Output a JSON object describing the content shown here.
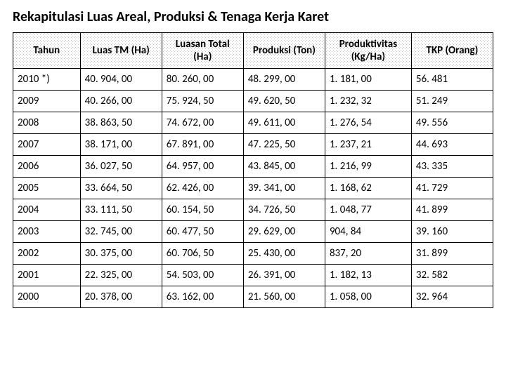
{
  "title": "Rekapitulasi Luas Areal, Produksi & Tenaga Kerja Karet",
  "table": {
    "columns": [
      "Tahun",
      "Luas TM (Ha)",
      "Luasan Total (Ha)",
      "Produksi (Ton)",
      "Produktivitas (Kg/Ha)",
      "TKP (Orang)"
    ],
    "rows": [
      [
        "2010 *)",
        "40. 904, 00",
        "80. 260, 00",
        "48. 299, 00",
        "1. 181, 00",
        "56. 481"
      ],
      [
        "2009",
        "40. 266, 00",
        "75. 924, 50",
        "49. 620, 50",
        "1. 232, 32",
        "51. 249"
      ],
      [
        "2008",
        "38. 863, 50",
        "74. 672, 00",
        "49. 611, 00",
        "1. 276, 54",
        "49. 556"
      ],
      [
        "2007",
        "38. 171, 00",
        "67. 891, 00",
        "47. 225, 50",
        "1. 237, 21",
        "44. 693"
      ],
      [
        "2006",
        "36. 027, 50",
        "64. 957, 00",
        "43. 845, 00",
        "1. 216, 99",
        "43. 335"
      ],
      [
        "2005",
        "33. 664, 50",
        "62. 426, 00",
        "39. 341, 00",
        "1. 168, 62",
        "41. 729"
      ],
      [
        "2004",
        "33. 111, 50",
        "60. 154, 50",
        "34. 726, 50",
        "1. 048, 77",
        "41. 899"
      ],
      [
        "2003",
        "32. 745, 00",
        "60. 477, 50",
        "29. 629, 00",
        "904, 84",
        "39. 160"
      ],
      [
        "2002",
        "30. 375, 00",
        "60. 706, 50",
        "25. 430, 00",
        "837, 20",
        "31. 899"
      ],
      [
        "2001",
        "22. 325, 00",
        "54. 503, 00",
        "26. 391, 00",
        "1. 182, 13",
        "32. 582"
      ],
      [
        "2000",
        "20. 378, 00",
        "63. 162, 00",
        "21. 560, 00",
        "1. 058, 00",
        "32. 964"
      ]
    ]
  }
}
